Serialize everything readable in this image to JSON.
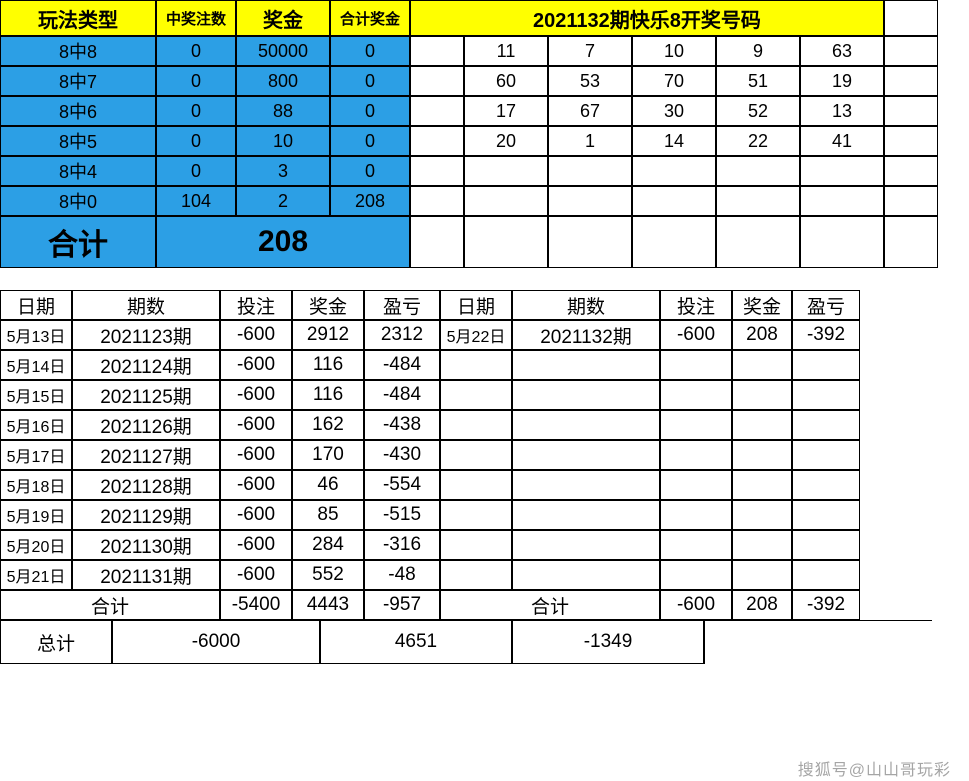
{
  "top": {
    "headers": {
      "type": "玩法类型",
      "count": "中奖注数",
      "prize": "奖金",
      "total": "合计奖金"
    },
    "title": "2021132期快乐8开奖号码",
    "rows": [
      {
        "type": "8中8",
        "count": "0",
        "prize": "50000",
        "total": "0"
      },
      {
        "type": "8中7",
        "count": "0",
        "prize": "800",
        "total": "0"
      },
      {
        "type": "8中6",
        "count": "0",
        "prize": "88",
        "total": "0"
      },
      {
        "type": "8中5",
        "count": "0",
        "prize": "10",
        "total": "0"
      },
      {
        "type": "8中4",
        "count": "0",
        "prize": "3",
        "total": "0"
      },
      {
        "type": "8中0",
        "count": "104",
        "prize": "2",
        "total": "208"
      }
    ],
    "sum_label": "合计",
    "sum_value": "208",
    "numbers": [
      [
        "11",
        "7",
        "10",
        "9",
        "63"
      ],
      [
        "60",
        "53",
        "70",
        "51",
        "19"
      ],
      [
        "17",
        "67",
        "30",
        "52",
        "13"
      ],
      [
        "20",
        "1",
        "14",
        "22",
        "41"
      ]
    ]
  },
  "bottom": {
    "headers": {
      "date": "日期",
      "period": "期数",
      "bet": "投注",
      "prize": "奖金",
      "pl": "盈亏"
    },
    "left": [
      {
        "date": "5月13日",
        "period": "2021123期",
        "bet": "-600",
        "prize": "2912",
        "pl": "2312"
      },
      {
        "date": "5月14日",
        "period": "2021124期",
        "bet": "-600",
        "prize": "116",
        "pl": "-484"
      },
      {
        "date": "5月15日",
        "period": "2021125期",
        "bet": "-600",
        "prize": "116",
        "pl": "-484"
      },
      {
        "date": "5月16日",
        "period": "2021126期",
        "bet": "-600",
        "prize": "162",
        "pl": "-438"
      },
      {
        "date": "5月17日",
        "period": "2021127期",
        "bet": "-600",
        "prize": "170",
        "pl": "-430"
      },
      {
        "date": "5月18日",
        "period": "2021128期",
        "bet": "-600",
        "prize": "46",
        "pl": "-554"
      },
      {
        "date": "5月19日",
        "period": "2021129期",
        "bet": "-600",
        "prize": "85",
        "pl": "-515"
      },
      {
        "date": "5月20日",
        "period": "2021130期",
        "bet": "-600",
        "prize": "284",
        "pl": "-316"
      },
      {
        "date": "5月21日",
        "period": "2021131期",
        "bet": "-600",
        "prize": "552",
        "pl": "-48"
      }
    ],
    "right": [
      {
        "date": "5月22日",
        "period": "2021132期",
        "bet": "-600",
        "prize": "208",
        "pl": "-392"
      }
    ],
    "heji_label": "合计",
    "heji_left": {
      "bet": "-5400",
      "prize": "4443",
      "pl": "-957"
    },
    "heji_right": {
      "bet": "-600",
      "prize": "208",
      "pl": "-392"
    },
    "zongji_label": "总计",
    "zongji": {
      "bet": "-6000",
      "prize": "4651",
      "pl": "-1349"
    }
  },
  "watermark": "搜狐号@山山哥玩彩",
  "colors": {
    "yellow": "#ffff00",
    "blue": "#2c9fe5",
    "border": "#000000",
    "bg": "#ffffff"
  }
}
